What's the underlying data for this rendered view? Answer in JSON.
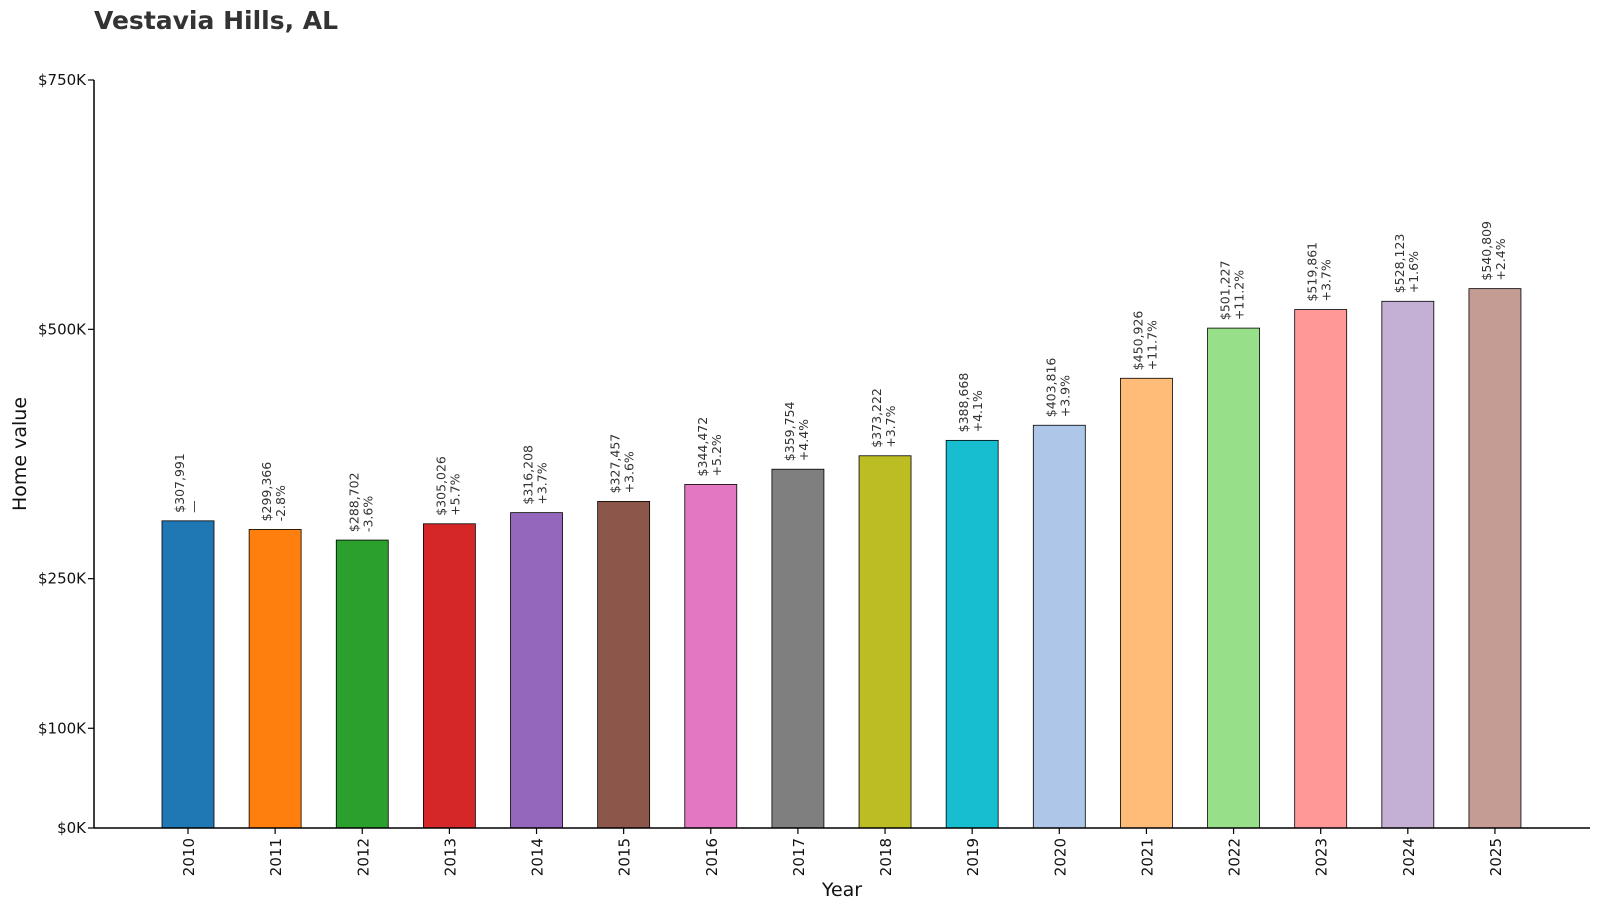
{
  "chart_data": {
    "type": "bar",
    "title": "Vestavia Hills, AL",
    "xlabel": "Year",
    "ylabel": "Home value",
    "categories": [
      "2010",
      "2011",
      "2012",
      "2013",
      "2014",
      "2015",
      "2016",
      "2017",
      "2018",
      "2019",
      "2020",
      "2021",
      "2022",
      "2023",
      "2024",
      "2025"
    ],
    "values": [
      307991,
      299366,
      288702,
      305026,
      316208,
      327457,
      344472,
      359754,
      373222,
      388668,
      403816,
      450926,
      501227,
      519861,
      528123,
      540809
    ],
    "value_labels": [
      "$307,991",
      "$299,366",
      "$288,702",
      "$305,026",
      "$316,208",
      "$327,457",
      "$344,472",
      "$359,754",
      "$373,222",
      "$388,668",
      "$403,816",
      "$450,926",
      "$501,227",
      "$519,861",
      "$528,123",
      "$540,809"
    ],
    "change_labels": [
      "—",
      "-2.8%",
      "-3.6%",
      "+5.7%",
      "+3.7%",
      "+3.6%",
      "+5.2%",
      "+4.4%",
      "+3.7%",
      "+4.1%",
      "+3.9%",
      "+11.7%",
      "+11.2%",
      "+3.7%",
      "+1.6%",
      "+2.4%"
    ],
    "colors": [
      "#1f77b4",
      "#ff7f0e",
      "#2ca02c",
      "#d62728",
      "#9467bd",
      "#8c564b",
      "#e377c2",
      "#7f7f7f",
      "#bcbd22",
      "#17becf",
      "#aec7e8",
      "#ffbb78",
      "#98df8a",
      "#ff9896",
      "#c5b0d5",
      "#c49c94"
    ],
    "y_ticks": [
      0,
      100000,
      250000,
      500000,
      750000
    ],
    "y_tick_labels": [
      "$0K",
      "$100K",
      "$250K",
      "$500K",
      "$750K"
    ],
    "ylim": [
      0,
      750000
    ],
    "grid": false,
    "legend": "none"
  }
}
